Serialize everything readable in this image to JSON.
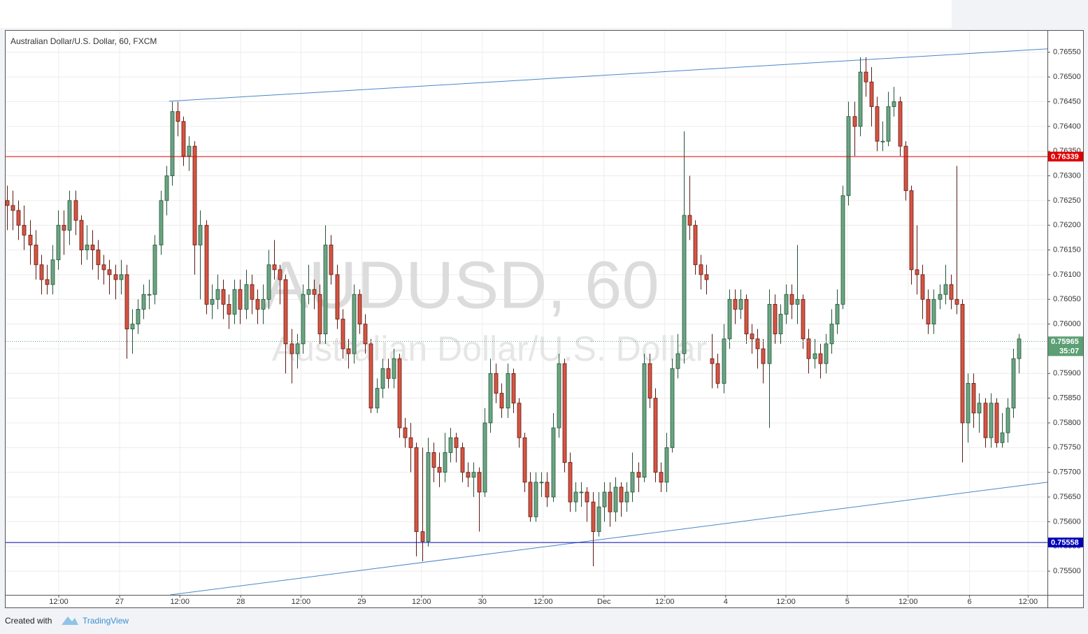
{
  "chart_data": {
    "type": "candlestick",
    "title": "Australian Dollar/U.S. Dollar, 60, FXCM",
    "watermark_symbol": "AUDUSD, 60",
    "watermark_name": "Australian Dollar/U.S. Dollar",
    "up_color": "#6ba583",
    "down_color": "#d75442",
    "up_border": "#225437",
    "down_border": "#5b1a13",
    "grid": true,
    "xlim": [
      -0.25,
      183.0
    ],
    "xticks": [
      {
        "value": 9.1,
        "label": "12:00"
      },
      {
        "value": 19.8,
        "label": "27"
      },
      {
        "value": 30.4,
        "label": "12:00"
      },
      {
        "value": 41.1,
        "label": "28"
      },
      {
        "value": 51.7,
        "label": "12:00"
      },
      {
        "value": 62.4,
        "label": "29"
      },
      {
        "value": 72.9,
        "label": "12:00"
      },
      {
        "value": 83.6,
        "label": "30"
      },
      {
        "value": 94.3,
        "label": "12:00"
      },
      {
        "value": 105.0,
        "label": "Dec"
      },
      {
        "value": 115.7,
        "label": "12:00"
      },
      {
        "value": 126.4,
        "label": "4"
      },
      {
        "value": 137.0,
        "label": "12:00"
      },
      {
        "value": 147.8,
        "label": "5"
      },
      {
        "value": 158.5,
        "label": "12:00"
      },
      {
        "value": 169.3,
        "label": "6"
      },
      {
        "value": 179.6,
        "label": "12:00"
      }
    ],
    "ylim": [
      0.75452,
      0.76595
    ],
    "yticks": [
      {
        "value": 0.755,
        "label": "0.75500"
      },
      {
        "value": 0.7555,
        "label": "0.75550"
      },
      {
        "value": 0.756,
        "label": "0.75600"
      },
      {
        "value": 0.7565,
        "label": "0.75650"
      },
      {
        "value": 0.757,
        "label": "0.75700"
      },
      {
        "value": 0.7575,
        "label": "0.75750"
      },
      {
        "value": 0.758,
        "label": "0.75800"
      },
      {
        "value": 0.7585,
        "label": "0.75850"
      },
      {
        "value": 0.759,
        "label": "0.75900"
      },
      {
        "value": 0.7595,
        "label": "0.75950"
      },
      {
        "value": 0.76,
        "label": "0.76000"
      },
      {
        "value": 0.7605,
        "label": "0.76050"
      },
      {
        "value": 0.761,
        "label": "0.76100"
      },
      {
        "value": 0.7615,
        "label": "0.76150"
      },
      {
        "value": 0.762,
        "label": "0.76200"
      },
      {
        "value": 0.7625,
        "label": "0.76250"
      },
      {
        "value": 0.763,
        "label": "0.76300"
      },
      {
        "value": 0.7635,
        "label": "0.76350"
      },
      {
        "value": 0.764,
        "label": "0.76400"
      },
      {
        "value": 0.7645,
        "label": "0.76450"
      },
      {
        "value": 0.765,
        "label": "0.76500"
      },
      {
        "value": 0.7655,
        "label": "0.76550"
      }
    ],
    "price_lines": [
      {
        "value": 0.76339,
        "color": "#e00000"
      },
      {
        "value": 0.75558,
        "color": "#0000b8"
      }
    ],
    "last_price": {
      "value": 0.75965,
      "countdown": "35:07",
      "color": "#5d9f75"
    },
    "trendlines": [
      {
        "x": [
          28.5,
          183.0
        ],
        "y": [
          0.76451,
          0.76557
        ],
        "color": "#4a86c8"
      },
      {
        "x": [
          28.7,
          183.0
        ],
        "y": [
          0.75452,
          0.7568
        ],
        "color": "#4a86c8"
      }
    ],
    "candles": [
      [
        0.7625,
        0.7628,
        0.7619,
        0.7624
      ],
      [
        0.7624,
        0.7627,
        0.7619,
        0.7623
      ],
      [
        0.7623,
        0.7625,
        0.7617,
        0.762
      ],
      [
        0.762,
        0.7624,
        0.7615,
        0.7618
      ],
      [
        0.7618,
        0.7621,
        0.7612,
        0.7616
      ],
      [
        0.7616,
        0.7619,
        0.7609,
        0.7612
      ],
      [
        0.7612,
        0.7614,
        0.7606,
        0.7609
      ],
      [
        0.7609,
        0.7612,
        0.7606,
        0.7608
      ],
      [
        0.7608,
        0.7616,
        0.7606,
        0.7613
      ],
      [
        0.7613,
        0.7623,
        0.7611,
        0.762
      ],
      [
        0.762,
        0.7623,
        0.7614,
        0.7619
      ],
      [
        0.7619,
        0.7627,
        0.7616,
        0.7625
      ],
      [
        0.7625,
        0.7627,
        0.7618,
        0.7621
      ],
      [
        0.7621,
        0.7622,
        0.7612,
        0.7615
      ],
      [
        0.7615,
        0.762,
        0.7613,
        0.7616
      ],
      [
        0.7616,
        0.7619,
        0.7611,
        0.7615
      ],
      [
        0.7615,
        0.7617,
        0.7609,
        0.7612
      ],
      [
        0.7612,
        0.7614,
        0.7608,
        0.7611
      ],
      [
        0.7611,
        0.7613,
        0.7606,
        0.761
      ],
      [
        0.761,
        0.7612,
        0.7605,
        0.7609
      ],
      [
        0.7609,
        0.7613,
        0.7606,
        0.761
      ],
      [
        0.761,
        0.7612,
        0.7593,
        0.7599
      ],
      [
        0.7599,
        0.7603,
        0.7594,
        0.76
      ],
      [
        0.76,
        0.7605,
        0.7598,
        0.7603
      ],
      [
        0.7603,
        0.7608,
        0.7601,
        0.7606
      ],
      [
        0.7606,
        0.7609,
        0.7603,
        0.7606
      ],
      [
        0.7606,
        0.7618,
        0.7604,
        0.7616
      ],
      [
        0.7616,
        0.7627,
        0.7614,
        0.7625
      ],
      [
        0.7625,
        0.7632,
        0.7622,
        0.763
      ],
      [
        0.763,
        0.7645,
        0.7628,
        0.7643
      ],
      [
        0.7643,
        0.7645,
        0.7638,
        0.7641
      ],
      [
        0.7641,
        0.7642,
        0.7632,
        0.7634
      ],
      [
        0.7634,
        0.7638,
        0.7631,
        0.7636
      ],
      [
        0.7636,
        0.7637,
        0.761,
        0.7616
      ],
      [
        0.7616,
        0.7623,
        0.7605,
        0.762
      ],
      [
        0.762,
        0.7621,
        0.7602,
        0.7604
      ],
      [
        0.7604,
        0.7608,
        0.7601,
        0.7605
      ],
      [
        0.7605,
        0.761,
        0.7603,
        0.7607
      ],
      [
        0.7607,
        0.7609,
        0.7601,
        0.7604
      ],
      [
        0.7604,
        0.7606,
        0.7599,
        0.7602
      ],
      [
        0.7602,
        0.7609,
        0.76,
        0.7607
      ],
      [
        0.7607,
        0.7609,
        0.76,
        0.7603
      ],
      [
        0.7603,
        0.7611,
        0.7601,
        0.7608
      ],
      [
        0.7608,
        0.761,
        0.7602,
        0.7605
      ],
      [
        0.7605,
        0.7607,
        0.76,
        0.7603
      ],
      [
        0.7603,
        0.7608,
        0.76,
        0.7605
      ],
      [
        0.7605,
        0.7615,
        0.7603,
        0.7612
      ],
      [
        0.7612,
        0.7617,
        0.7609,
        0.7611
      ],
      [
        0.7611,
        0.7612,
        0.7604,
        0.7609
      ],
      [
        0.7609,
        0.761,
        0.759,
        0.7596
      ],
      [
        0.7596,
        0.7599,
        0.7588,
        0.7594
      ],
      [
        0.7594,
        0.7598,
        0.7591,
        0.7596
      ],
      [
        0.7596,
        0.7608,
        0.7594,
        0.7606
      ],
      [
        0.7606,
        0.7612,
        0.7604,
        0.7607
      ],
      [
        0.7607,
        0.7609,
        0.7603,
        0.7606
      ],
      [
        0.7606,
        0.7608,
        0.7596,
        0.7598
      ],
      [
        0.7598,
        0.762,
        0.7596,
        0.7616
      ],
      [
        0.7616,
        0.7618,
        0.7608,
        0.761
      ],
      [
        0.761,
        0.7612,
        0.7599,
        0.7601
      ],
      [
        0.7601,
        0.7603,
        0.7593,
        0.7595
      ],
      [
        0.7595,
        0.7597,
        0.7591,
        0.7594
      ],
      [
        0.7594,
        0.7608,
        0.7592,
        0.7606
      ],
      [
        0.7606,
        0.7607,
        0.7598,
        0.76
      ],
      [
        0.76,
        0.7602,
        0.7594,
        0.7596
      ],
      [
        0.7596,
        0.7597,
        0.7582,
        0.7583
      ],
      [
        0.7583,
        0.7589,
        0.7582,
        0.7587
      ],
      [
        0.7587,
        0.7593,
        0.7585,
        0.7591
      ],
      [
        0.7591,
        0.7593,
        0.7587,
        0.7589
      ],
      [
        0.7589,
        0.7595,
        0.7587,
        0.7593
      ],
      [
        0.7593,
        0.7594,
        0.7577,
        0.7579
      ],
      [
        0.7579,
        0.7581,
        0.7575,
        0.7577
      ],
      [
        0.7577,
        0.758,
        0.757,
        0.7575
      ],
      [
        0.7575,
        0.7576,
        0.7553,
        0.7558
      ],
      [
        0.7558,
        0.7575,
        0.7552,
        0.7556
      ],
      [
        0.7556,
        0.7577,
        0.7555,
        0.7574
      ],
      [
        0.7574,
        0.7576,
        0.7568,
        0.7571
      ],
      [
        0.7571,
        0.7574,
        0.7567,
        0.757
      ],
      [
        0.757,
        0.7578,
        0.7568,
        0.7574
      ],
      [
        0.7574,
        0.7579,
        0.7572,
        0.7577
      ],
      [
        0.7577,
        0.7578,
        0.7572,
        0.7575
      ],
      [
        0.7575,
        0.7576,
        0.7568,
        0.757
      ],
      [
        0.757,
        0.7572,
        0.7567,
        0.7569
      ],
      [
        0.7569,
        0.7572,
        0.7565,
        0.757
      ],
      [
        0.757,
        0.7571,
        0.7558,
        0.7566
      ],
      [
        0.7566,
        0.7583,
        0.7565,
        0.758
      ],
      [
        0.758,
        0.7593,
        0.7578,
        0.759
      ],
      [
        0.759,
        0.7592,
        0.7584,
        0.7586
      ],
      [
        0.7586,
        0.7588,
        0.7581,
        0.7583
      ],
      [
        0.7583,
        0.7592,
        0.7581,
        0.759
      ],
      [
        0.759,
        0.7591,
        0.7582,
        0.7584
      ],
      [
        0.7584,
        0.7585,
        0.7575,
        0.7577
      ],
      [
        0.7577,
        0.7578,
        0.7566,
        0.7568
      ],
      [
        0.7568,
        0.757,
        0.756,
        0.7561
      ],
      [
        0.7561,
        0.757,
        0.756,
        0.7568
      ],
      [
        0.7568,
        0.757,
        0.7565,
        0.7568
      ],
      [
        0.7568,
        0.757,
        0.7563,
        0.7565
      ],
      [
        0.7565,
        0.7582,
        0.7564,
        0.7579
      ],
      [
        0.7579,
        0.7594,
        0.7577,
        0.7592
      ],
      [
        0.7592,
        0.7593,
        0.757,
        0.7572
      ],
      [
        0.7572,
        0.7574,
        0.7562,
        0.7564
      ],
      [
        0.7564,
        0.7568,
        0.7562,
        0.7566
      ],
      [
        0.7566,
        0.7568,
        0.7563,
        0.7566
      ],
      [
        0.7566,
        0.7567,
        0.756,
        0.7564
      ],
      [
        0.7564,
        0.7566,
        0.7551,
        0.7558
      ],
      [
        0.7558,
        0.7566,
        0.7557,
        0.7563
      ],
      [
        0.7563,
        0.7568,
        0.756,
        0.7566
      ],
      [
        0.7566,
        0.7568,
        0.7559,
        0.7562
      ],
      [
        0.7562,
        0.7569,
        0.756,
        0.7567
      ],
      [
        0.7567,
        0.7568,
        0.7561,
        0.7564
      ],
      [
        0.7564,
        0.7568,
        0.7562,
        0.7566
      ],
      [
        0.7566,
        0.7574,
        0.7564,
        0.757
      ],
      [
        0.757,
        0.7572,
        0.7566,
        0.7569
      ],
      [
        0.7569,
        0.7594,
        0.7568,
        0.7592
      ],
      [
        0.7592,
        0.7594,
        0.7583,
        0.7585
      ],
      [
        0.7585,
        0.7587,
        0.7568,
        0.757
      ],
      [
        0.757,
        0.7572,
        0.7566,
        0.7568
      ],
      [
        0.7568,
        0.7578,
        0.7566,
        0.7575
      ],
      [
        0.7575,
        0.7593,
        0.7574,
        0.7591
      ],
      [
        0.7591,
        0.7598,
        0.7589,
        0.7594
      ],
      [
        0.7594,
        0.7639,
        0.7592,
        0.7622
      ],
      [
        0.7622,
        0.763,
        0.7617,
        0.762
      ],
      [
        0.762,
        0.7621,
        0.761,
        0.7612
      ],
      [
        0.7612,
        0.7614,
        0.7607,
        0.761
      ],
      [
        0.761,
        0.7612,
        0.7606,
        0.7609
      ],
      [
        0.7593,
        0.7598,
        0.7587,
        0.7592
      ],
      [
        0.7592,
        0.7594,
        0.7587,
        0.7588
      ],
      [
        0.7588,
        0.76,
        0.7586,
        0.7597
      ],
      [
        0.7597,
        0.7607,
        0.7595,
        0.7605
      ],
      [
        0.7605,
        0.7607,
        0.76,
        0.7603
      ],
      [
        0.7603,
        0.7607,
        0.7601,
        0.7605
      ],
      [
        0.7605,
        0.7606,
        0.7596,
        0.7598
      ],
      [
        0.7598,
        0.76,
        0.7594,
        0.7597
      ],
      [
        0.7597,
        0.7599,
        0.7591,
        0.7595
      ],
      [
        0.7595,
        0.7597,
        0.7588,
        0.7592
      ],
      [
        0.7592,
        0.7607,
        0.7579,
        0.7604
      ],
      [
        0.7604,
        0.7606,
        0.7596,
        0.7598
      ],
      [
        0.7598,
        0.7604,
        0.7596,
        0.7602
      ],
      [
        0.7602,
        0.7608,
        0.76,
        0.7606
      ],
      [
        0.7606,
        0.7608,
        0.7601,
        0.7604
      ],
      [
        0.7604,
        0.7616,
        0.76,
        0.7605
      ],
      [
        0.7605,
        0.7606,
        0.7595,
        0.7597
      ],
      [
        0.7597,
        0.7599,
        0.759,
        0.7593
      ],
      [
        0.7593,
        0.7597,
        0.7591,
        0.7594
      ],
      [
        0.7594,
        0.7596,
        0.7589,
        0.7592
      ],
      [
        0.7592,
        0.7598,
        0.759,
        0.7596
      ],
      [
        0.7596,
        0.7603,
        0.7594,
        0.76
      ],
      [
        0.76,
        0.7607,
        0.7598,
        0.7604
      ],
      [
        0.7604,
        0.7628,
        0.7603,
        0.7626
      ],
      [
        0.7626,
        0.7645,
        0.7624,
        0.7642
      ],
      [
        0.7642,
        0.7645,
        0.7634,
        0.764
      ],
      [
        0.764,
        0.7654,
        0.7638,
        0.7651
      ],
      [
        0.7651,
        0.7654,
        0.7646,
        0.7649
      ],
      [
        0.7649,
        0.7652,
        0.764,
        0.7644
      ],
      [
        0.7644,
        0.7646,
        0.7635,
        0.7637
      ],
      [
        0.7637,
        0.7641,
        0.7635,
        0.7637
      ],
      [
        0.7637,
        0.7647,
        0.7636,
        0.7644
      ],
      [
        0.7644,
        0.7648,
        0.7642,
        0.7645
      ],
      [
        0.7645,
        0.7646,
        0.7634,
        0.7636
      ],
      [
        0.7636,
        0.7637,
        0.7625,
        0.7627
      ],
      [
        0.7627,
        0.7628,
        0.7608,
        0.7611
      ],
      [
        0.7611,
        0.762,
        0.7606,
        0.761
      ],
      [
        0.761,
        0.7612,
        0.7601,
        0.7605
      ],
      [
        0.7605,
        0.7607,
        0.7598,
        0.76
      ],
      [
        0.76,
        0.7607,
        0.7598,
        0.7605
      ],
      [
        0.7605,
        0.7608,
        0.7603,
        0.7606
      ],
      [
        0.7606,
        0.7612,
        0.7604,
        0.7608
      ],
      [
        0.7608,
        0.761,
        0.7603,
        0.7605
      ],
      [
        0.7605,
        0.7632,
        0.7602,
        0.7604
      ],
      [
        0.7604,
        0.7605,
        0.7572,
        0.758
      ],
      [
        0.758,
        0.759,
        0.7576,
        0.7588
      ],
      [
        0.7588,
        0.759,
        0.7579,
        0.7582
      ],
      [
        0.7582,
        0.7586,
        0.7578,
        0.7584
      ],
      [
        0.7584,
        0.7585,
        0.7575,
        0.7577
      ],
      [
        0.7577,
        0.7586,
        0.7575,
        0.7584
      ],
      [
        0.7584,
        0.7585,
        0.7575,
        0.7576
      ],
      [
        0.7576,
        0.7582,
        0.7575,
        0.7578
      ],
      [
        0.7578,
        0.7585,
        0.7576,
        0.7583
      ],
      [
        0.7583,
        0.7595,
        0.7581,
        0.7593
      ],
      [
        0.7593,
        0.7598,
        0.759,
        0.7597
      ]
    ]
  },
  "footer": {
    "created": "Created with",
    "brand": "TradingView"
  }
}
